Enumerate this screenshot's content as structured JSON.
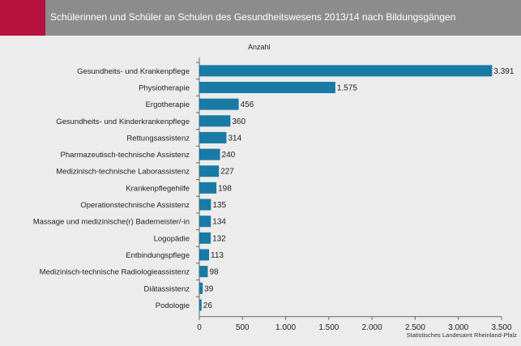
{
  "header": {
    "title": "Schülerinnen und Schüler an Schulen des Gesundheitswesens 2013/14 nach Bildungsgängen"
  },
  "source": "Statistisches Landesamt Rheinland-Pfalz",
  "colors": {
    "accent": "#b5123f",
    "header_bg": "#8c8c8c",
    "bar": "#1a7aa6",
    "background": "#ececec"
  },
  "chart_data": {
    "type": "bar",
    "orientation": "horizontal",
    "ylabel_top": "Anzahl",
    "categories": [
      "Gesundheits- und Krankenpflege",
      "Physiotherapie",
      "Ergotherapie",
      "Gesundheits- und Kinderkrankenpflege",
      "Rettungsassistenz",
      "Pharmazeutisch-technische Assistenz",
      "Medizinisch-technische Laborassistenz",
      "Krankenpflegehilfe",
      "Operationstechnische Assistenz",
      "Massage und medizinische(r) Bademeister/-in",
      "Logopädie",
      "Entbindungspflege",
      "Medizinisch-technische Radiologieassistenz",
      "Diätassistenz",
      "Podologie"
    ],
    "values": [
      3391,
      1575,
      456,
      360,
      314,
      240,
      227,
      198,
      135,
      134,
      132,
      113,
      98,
      39,
      26
    ],
    "value_labels": [
      "3.391",
      "1.575",
      "456",
      "360",
      "314",
      "240",
      "227",
      "198",
      "135",
      "134",
      "132",
      "113",
      "98",
      "39",
      "26"
    ],
    "xlim": [
      0,
      3500
    ],
    "xticks": [
      0,
      500,
      1000,
      1500,
      2000,
      2500,
      3000,
      3500
    ],
    "xtick_labels": [
      "0",
      "500",
      "1.000",
      "1.500",
      "2.000",
      "2.500",
      "3.000",
      "3.500"
    ],
    "grid": false,
    "legend": "none"
  }
}
